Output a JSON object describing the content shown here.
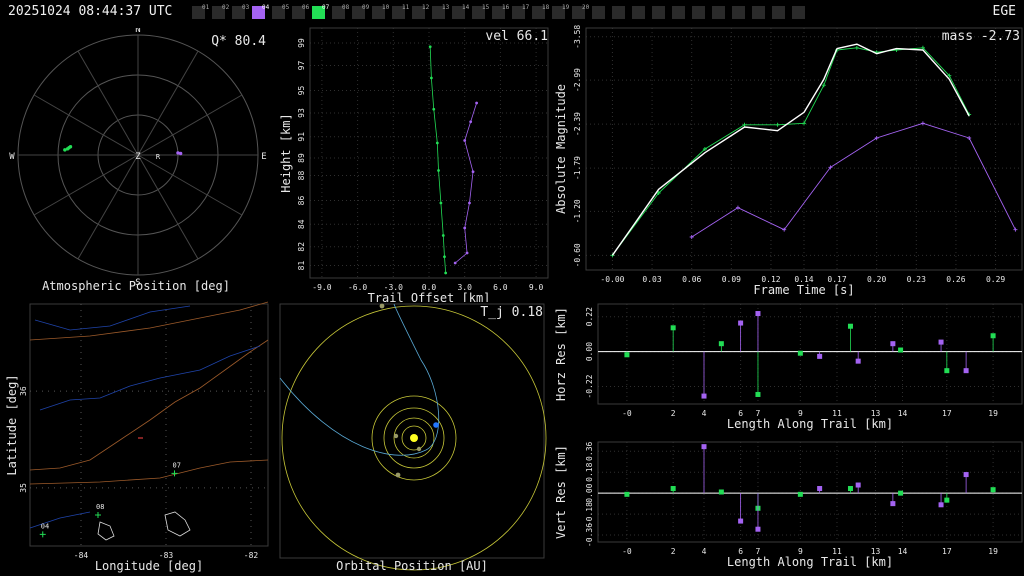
{
  "header": {
    "timestamp": "20251024 08:44:37 UTC",
    "station": "EGE",
    "cameras": [
      {
        "label": "01",
        "state": "off"
      },
      {
        "label": "02",
        "state": "off"
      },
      {
        "label": "03",
        "state": "off"
      },
      {
        "label": "04",
        "state": "purple"
      },
      {
        "label": "05",
        "state": "off"
      },
      {
        "label": "06",
        "state": "off"
      },
      {
        "label": "07",
        "state": "green"
      },
      {
        "label": "08",
        "state": "off"
      },
      {
        "label": "09",
        "state": "off"
      },
      {
        "label": "10",
        "state": "off"
      },
      {
        "label": "11",
        "state": "off"
      },
      {
        "label": "12",
        "state": "off"
      },
      {
        "label": "13",
        "state": "off"
      },
      {
        "label": "14",
        "state": "off"
      },
      {
        "label": "15",
        "state": "off"
      },
      {
        "label": "16",
        "state": "off"
      },
      {
        "label": "17",
        "state": "off"
      },
      {
        "label": "18",
        "state": "off"
      },
      {
        "label": "19",
        "state": "off"
      },
      {
        "label": "20",
        "state": "off"
      },
      {
        "label": "",
        "state": "off"
      },
      {
        "label": "",
        "state": "off"
      },
      {
        "label": "",
        "state": "off"
      },
      {
        "label": "",
        "state": "off"
      },
      {
        "label": "",
        "state": "off"
      },
      {
        "label": "",
        "state": "off"
      },
      {
        "label": "",
        "state": "off"
      },
      {
        "label": "",
        "state": "off"
      },
      {
        "label": "",
        "state": "off"
      },
      {
        "label": "",
        "state": "off"
      },
      {
        "label": "",
        "state": "off"
      }
    ],
    "colors": {
      "green": "#22dd55",
      "purple": "#a463f2",
      "off": "#2a2a2a"
    }
  },
  "chart_data": [
    {
      "id": "polar",
      "type": "scatter",
      "xlabel": "Atmospheric Position [deg]",
      "value_label": "Q* 80.4",
      "directions": [
        "N",
        "E",
        "S",
        "W",
        "Z"
      ],
      "radiant_label": "R",
      "series": [
        {
          "color": "#22dd55",
          "points": [
            [
              -86,
              35
            ],
            [
              -85,
              37
            ],
            [
              -84,
              38
            ],
            [
              -83,
              39
            ]
          ]
        },
        {
          "color": "#a463f2",
          "points": [
            [
              88,
              58
            ],
            [
              87,
              60
            ]
          ]
        }
      ]
    },
    {
      "id": "height",
      "type": "line",
      "xlabel": "Trail Offset [km]",
      "ylabel": "Height [km]",
      "value_label": "vel 66.1",
      "xlim": [
        -10,
        10
      ],
      "ylim": [
        80,
        100
      ],
      "xticks": [
        "-9.0",
        "-6.0",
        "-3.0",
        "0.0",
        "3.0",
        "6.0",
        "9.0"
      ],
      "yticks": [
        "81",
        "82",
        "84",
        "86",
        "88",
        "89",
        "91",
        "93",
        "95",
        "97",
        "99"
      ],
      "series": [
        {
          "color": "#22dd55",
          "x": [
            0.1,
            0.2,
            0.4,
            0.7,
            0.8,
            1.0,
            1.2,
            1.3,
            1.4
          ],
          "y": [
            98.5,
            96,
            93.5,
            90.8,
            88.6,
            86,
            83.4,
            81.7,
            80.4
          ]
        },
        {
          "color": "#a463f2",
          "x": [
            4.0,
            3.5,
            3.0,
            3.7,
            3.4,
            3.0,
            3.2,
            2.2
          ],
          "y": [
            94,
            92.5,
            91,
            88.5,
            86,
            84,
            82,
            81.2
          ]
        }
      ]
    },
    {
      "id": "magnitude",
      "type": "line",
      "xlabel": "Frame Time [s]",
      "ylabel": "Absolute Magnitude",
      "value_label": "mass -2.73",
      "xlim": [
        -0.02,
        0.31
      ],
      "ylim": [
        -0.4,
        -3.7
      ],
      "xticks": [
        "-0.00",
        "0.03",
        "0.06",
        "0.09",
        "0.12",
        "0.14",
        "0.17",
        "0.20",
        "0.23",
        "0.26",
        "0.29"
      ],
      "yticks": [
        "-0.60",
        "-1.20",
        "-1.79",
        "-2.39",
        "-2.99",
        "-3.58"
      ],
      "series": [
        {
          "color": "#22dd55",
          "x": [
            0.0,
            0.035,
            0.07,
            0.1,
            0.125,
            0.145,
            0.16,
            0.17,
            0.185,
            0.2,
            0.215,
            0.235,
            0.255,
            0.27
          ],
          "y": [
            -0.6,
            -1.45,
            -2.05,
            -2.38,
            -2.38,
            -2.4,
            -2.92,
            -3.4,
            -3.43,
            -3.37,
            -3.4,
            -3.43,
            -3.05,
            -2.52
          ]
        },
        {
          "color": "#ffffff",
          "x": [
            0.0,
            0.035,
            0.07,
            0.1,
            0.125,
            0.145,
            0.16,
            0.17,
            0.185,
            0.2,
            0.215,
            0.235,
            0.255,
            0.27
          ],
          "y": [
            -0.6,
            -1.5,
            -2.0,
            -2.35,
            -2.3,
            -2.55,
            -3.0,
            -3.42,
            -3.48,
            -3.35,
            -3.42,
            -3.4,
            -3.0,
            -2.5
          ]
        },
        {
          "color": "#a463f2",
          "x": [
            0.06,
            0.095,
            0.13,
            0.165,
            0.2,
            0.235,
            0.27,
            0.305
          ],
          "y": [
            -0.85,
            -1.25,
            -0.95,
            -1.8,
            -2.2,
            -2.4,
            -2.2,
            -0.95
          ]
        }
      ]
    },
    {
      "id": "map",
      "type": "scatter",
      "xlabel": "Longitude [deg]",
      "ylabel": "Latitude [deg]",
      "xlim": [
        -84.6,
        -81.8
      ],
      "ylim": [
        34.4,
        36.9
      ],
      "xticks": [
        "-84",
        "-83",
        "-82"
      ],
      "yticks": [
        "35",
        "36"
      ],
      "stations": [
        {
          "label": "07",
          "lon": -82.9,
          "lat": 35.15
        },
        {
          "label": "08",
          "lon": -83.8,
          "lat": 34.72
        },
        {
          "label": "04",
          "lon": -84.45,
          "lat": 34.52
        }
      ]
    },
    {
      "id": "orbit",
      "type": "scatter",
      "xlabel": "Orbital Position [AU]",
      "value_label": "T_j 0.18"
    },
    {
      "id": "horz",
      "type": "scatter",
      "xlabel": "Length Along Trail [km]",
      "ylabel": "Horz Res [km]",
      "xlim": [
        -1.5,
        20.5
      ],
      "ylim": [
        -0.33,
        0.3
      ],
      "xticks": [
        "-0",
        "2",
        "4",
        "6",
        "7",
        "9",
        "11",
        "13",
        "14",
        "17",
        "19"
      ],
      "yticks": [
        "0.22",
        "0.00",
        "-0.22"
      ],
      "series": [
        {
          "color": "#22dd55",
          "x": [
            -0.0,
            2.4,
            4.9,
            6.8,
            9.0,
            11.6,
            14.2,
            16.6,
            19.0
          ],
          "y": [
            -0.02,
            0.15,
            0.05,
            -0.27,
            -0.01,
            0.16,
            0.01,
            -0.12,
            0.1
          ]
        },
        {
          "color": "#a463f2",
          "x": [
            4.0,
            5.9,
            6.8,
            10.0,
            12.0,
            13.8,
            16.3,
            17.6
          ],
          "y": [
            -0.28,
            0.18,
            0.24,
            -0.03,
            -0.06,
            0.05,
            0.06,
            -0.12
          ]
        }
      ]
    },
    {
      "id": "vert",
      "type": "scatter",
      "xlabel": "Length Along Trail [km]",
      "ylabel": "Vert Res [km]",
      "xlim": [
        -1.5,
        20.5
      ],
      "ylim": [
        -0.42,
        0.44
      ],
      "xticks": [
        "-0",
        "2",
        "4",
        "6",
        "7",
        "9",
        "11",
        "13",
        "14",
        "17",
        "19"
      ],
      "yticks": [
        "0.36",
        "0.18",
        "0.00",
        "-0.18",
        "-0.36"
      ],
      "series": [
        {
          "color": "#22dd55",
          "x": [
            -0.0,
            2.4,
            4.9,
            6.8,
            9.0,
            11.6,
            14.2,
            16.6,
            19.0
          ],
          "y": [
            -0.01,
            0.04,
            0.01,
            -0.13,
            -0.01,
            0.04,
            0.0,
            -0.06,
            0.03
          ]
        },
        {
          "color": "#a463f2",
          "x": [
            4.0,
            5.9,
            6.8,
            10.0,
            12.0,
            13.8,
            16.3,
            17.6
          ],
          "y": [
            0.4,
            -0.24,
            -0.31,
            0.04,
            0.07,
            -0.09,
            -0.1,
            0.16
          ]
        }
      ]
    }
  ]
}
